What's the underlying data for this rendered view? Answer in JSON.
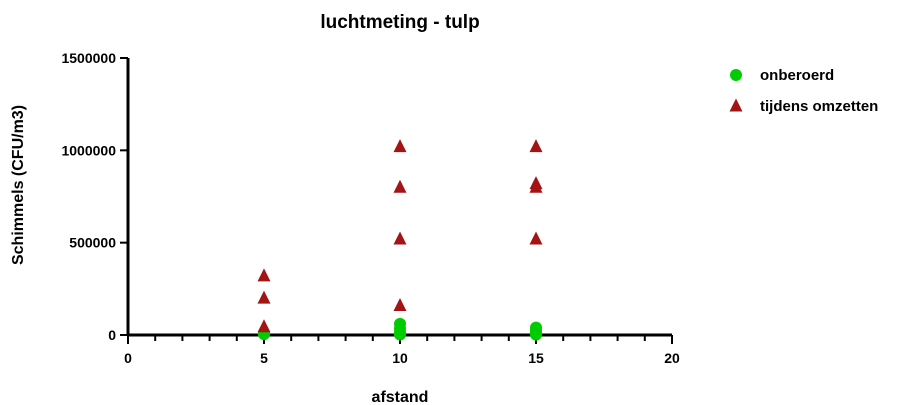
{
  "chart_data": {
    "type": "scatter",
    "title": "luchtmeting - tulp",
    "xlabel": "afstand",
    "ylabel": "Schimmels (CFU/m3)",
    "xlim": [
      0,
      20
    ],
    "ylim": [
      0,
      1500000
    ],
    "x_ticks": [
      0,
      5,
      10,
      15,
      20
    ],
    "y_ticks": [
      0,
      500000,
      1000000,
      1500000
    ],
    "x_tick_labels": [
      "0",
      "5",
      "10",
      "15",
      "20"
    ],
    "y_tick_labels": [
      "0",
      "500000",
      "1000000",
      "1500000"
    ],
    "grid": false,
    "legend_position": "top-right",
    "series": [
      {
        "name": "onberoerd",
        "marker": "circle",
        "color": "#00cc00",
        "points": [
          {
            "x": 5,
            "y": 5000
          },
          {
            "x": 5,
            "y": 10000
          },
          {
            "x": 10,
            "y": 60000
          },
          {
            "x": 10,
            "y": 35000
          },
          {
            "x": 10,
            "y": 15000
          },
          {
            "x": 10,
            "y": 3000
          },
          {
            "x": 15,
            "y": 40000
          },
          {
            "x": 15,
            "y": 25000
          },
          {
            "x": 15,
            "y": 10000
          },
          {
            "x": 15,
            "y": 2000
          }
        ]
      },
      {
        "name": "tijdens omzetten",
        "marker": "triangle",
        "color": "#a31515",
        "points": [
          {
            "x": 5,
            "y": 320000
          },
          {
            "x": 5,
            "y": 200000
          },
          {
            "x": 5,
            "y": 45000
          },
          {
            "x": 10,
            "y": 1020000
          },
          {
            "x": 10,
            "y": 800000
          },
          {
            "x": 10,
            "y": 520000
          },
          {
            "x": 10,
            "y": 160000
          },
          {
            "x": 15,
            "y": 1020000
          },
          {
            "x": 15,
            "y": 820000
          },
          {
            "x": 15,
            "y": 800000
          },
          {
            "x": 15,
            "y": 520000
          }
        ]
      }
    ]
  }
}
